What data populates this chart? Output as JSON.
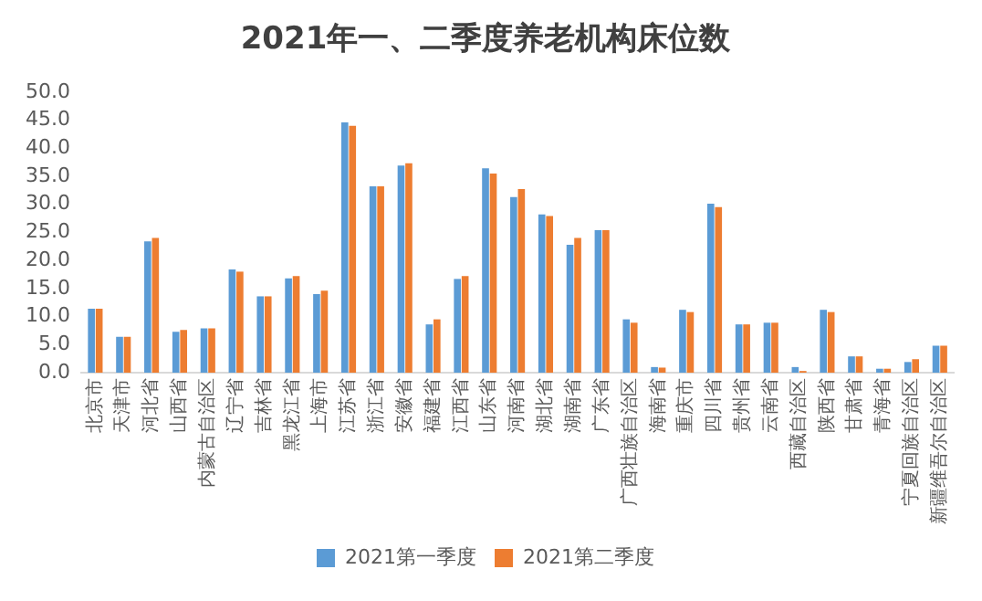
{
  "chart_data": {
    "type": "bar",
    "title": "2021年一、二季度养老机构床位数",
    "categories": [
      "北京市",
      "天津市",
      "河北省",
      "山西省",
      "内蒙古自治区",
      "辽宁省",
      "吉林省",
      "黑龙江省",
      "上海市",
      "江苏省",
      "浙江省",
      "安徽省",
      "福建省",
      "江西省",
      "山东省",
      "河南省",
      "湖北省",
      "湖南省",
      "广东省",
      "广西壮族自治区",
      "海南省",
      "重庆市",
      "四川省",
      "贵州省",
      "云南省",
      "西藏自治区",
      "陕西省",
      "甘肃省",
      "青海省",
      "宁夏回族自治区",
      "新疆维吾尔自治区"
    ],
    "series": [
      {
        "name": "2021第一季度",
        "color": "#5b9bd5",
        "values": [
          11.4,
          6.4,
          23.4,
          7.3,
          7.9,
          18.4,
          13.6,
          16.8,
          14.0,
          44.6,
          33.2,
          36.9,
          8.6,
          16.7,
          36.4,
          31.3,
          28.2,
          22.8,
          25.4,
          9.5,
          1.0,
          11.2,
          30.1,
          8.6,
          8.9,
          1.0,
          11.2,
          2.9,
          0.7,
          1.9,
          4.8
        ]
      },
      {
        "name": "2021第二季度",
        "color": "#ed7d31",
        "values": [
          11.4,
          6.4,
          24.0,
          7.6,
          7.9,
          18.0,
          13.6,
          17.2,
          14.6,
          44.0,
          33.2,
          37.3,
          9.5,
          17.2,
          35.5,
          32.7,
          27.9,
          24.0,
          25.4,
          8.9,
          0.9,
          10.8,
          29.5,
          8.6,
          8.9,
          0.3,
          10.8,
          2.9,
          0.7,
          2.4,
          4.8
        ]
      }
    ],
    "ylim": [
      0,
      50
    ],
    "yticks": [
      {
        "value": 0,
        "label": "0.0"
      },
      {
        "value": 5,
        "label": "5.0"
      },
      {
        "value": 10,
        "label": "10.0"
      },
      {
        "value": 15,
        "label": "15.0"
      },
      {
        "value": 20,
        "label": "20.0"
      },
      {
        "value": 25,
        "label": "25.0"
      },
      {
        "value": 30,
        "label": "30.0"
      },
      {
        "value": 35,
        "label": "35.0"
      },
      {
        "value": 40,
        "label": "40.0"
      },
      {
        "value": 45,
        "label": "45.0"
      },
      {
        "value": 50,
        "label": "50.0"
      }
    ],
    "grid": false,
    "legend": "bottom"
  }
}
